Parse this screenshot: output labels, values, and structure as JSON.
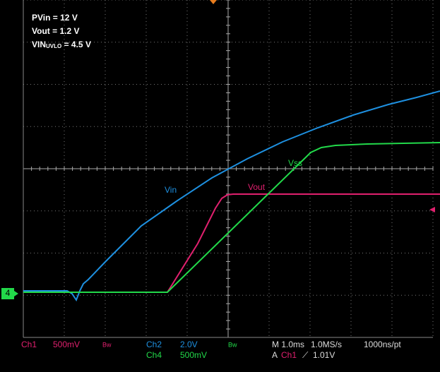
{
  "annotations": {
    "pvin": "PVin = 12 V",
    "vout": "Vout = 1.2 V",
    "vin_prefix": "VIN",
    "vin_sub": "UVLO",
    "vin_suffix": " = 4.5 V"
  },
  "trace_labels": {
    "vin": "Vin",
    "vout": "Vout",
    "vss": "Vss"
  },
  "ground_marker": "4",
  "status": {
    "ch1": "Ch1",
    "ch1_scale": "500mV",
    "ch1_bw": "Bw",
    "ch2": "Ch2",
    "ch2_scale": "2.0V",
    "ch4": "Ch4",
    "ch4_scale": "500mV",
    "ch4_bw": "Bw",
    "timebase": "M 1.0ms",
    "sample_rate": "1.0MS/s",
    "resolution": "1000ns/pt",
    "trigger_mode": "A",
    "trigger_source": "Ch1",
    "trigger_slope": "⟋",
    "trigger_level": "1.01V"
  }
}
